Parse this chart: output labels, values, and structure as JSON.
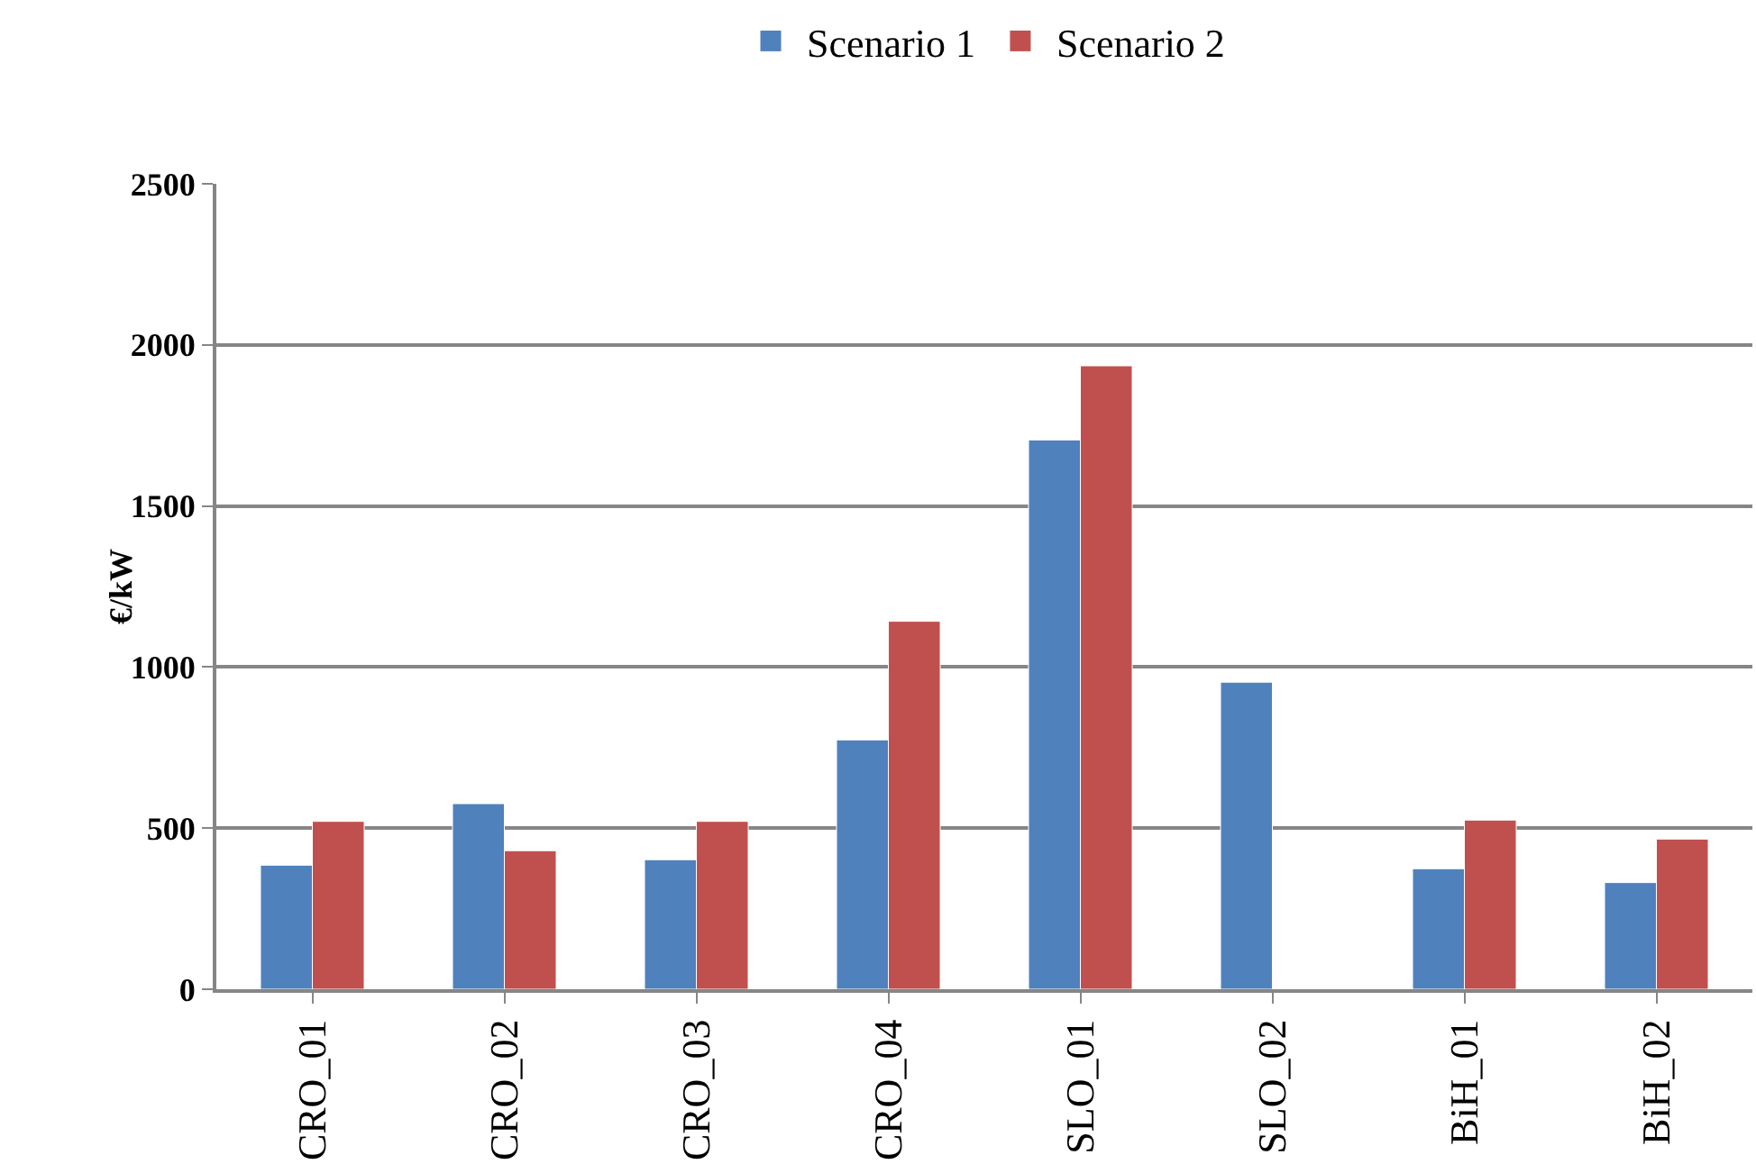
{
  "chart_data": {
    "type": "bar",
    "categories": [
      "CRO_01",
      "CRO_02",
      "CRO_03",
      "CRO_04",
      "SLO_01",
      "SLO_02",
      "BiH_01",
      "BiH_02"
    ],
    "series": [
      {
        "name": "Scenario 1",
        "color": "#4f81bd",
        "values": [
          385,
          576,
          402,
          774,
          1705,
          953,
          374,
          331
        ]
      },
      {
        "name": "Scenario 2",
        "color": "#c0504d",
        "values": [
          521,
          430,
          521,
          1142,
          1935,
          null,
          525,
          466
        ]
      }
    ],
    "ylabel": "€/kW",
    "ylim": [
      0,
      2500
    ],
    "yticks": [
      0,
      500,
      1000,
      1500,
      2000,
      2500
    ],
    "grid": "y",
    "legend": "top"
  }
}
